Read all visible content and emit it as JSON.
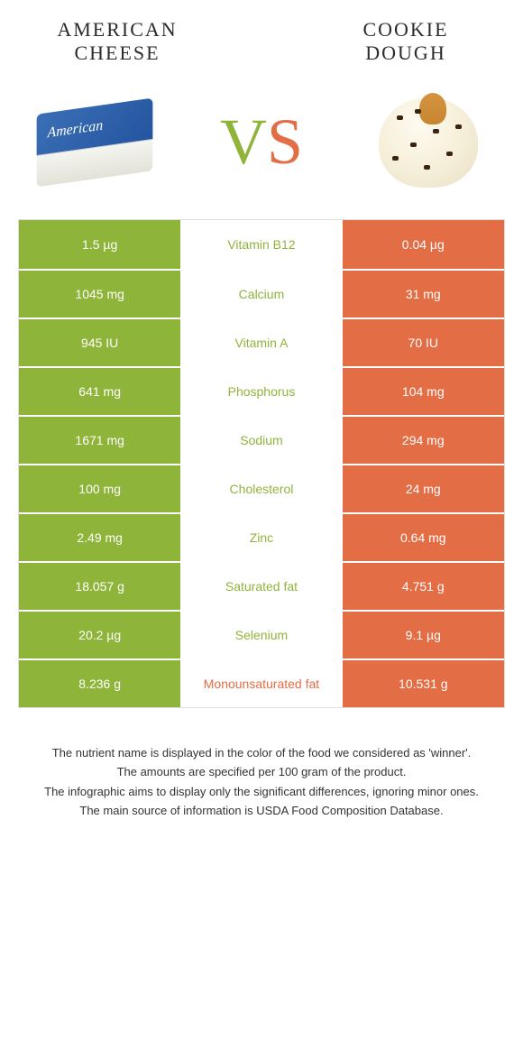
{
  "colors": {
    "left": "#8fb43a",
    "right": "#e36d44",
    "background": "#ffffff"
  },
  "header": {
    "left_title": "American cheese",
    "right_title": "Cookie dough"
  },
  "vs": {
    "v": "V",
    "s": "S"
  },
  "rows": [
    {
      "left": "1.5 µg",
      "label": "Vitamin B12",
      "right": "0.04 µg",
      "winner": "left"
    },
    {
      "left": "1045 mg",
      "label": "Calcium",
      "right": "31 mg",
      "winner": "left"
    },
    {
      "left": "945 IU",
      "label": "Vitamin A",
      "right": "70 IU",
      "winner": "left"
    },
    {
      "left": "641 mg",
      "label": "Phosphorus",
      "right": "104 mg",
      "winner": "left"
    },
    {
      "left": "1671 mg",
      "label": "Sodium",
      "right": "294 mg",
      "winner": "left"
    },
    {
      "left": "100 mg",
      "label": "Cholesterol",
      "right": "24 mg",
      "winner": "left"
    },
    {
      "left": "2.49 mg",
      "label": "Zinc",
      "right": "0.64 mg",
      "winner": "left"
    },
    {
      "left": "18.057 g",
      "label": "Saturated fat",
      "right": "4.751 g",
      "winner": "left"
    },
    {
      "left": "20.2 µg",
      "label": "Selenium",
      "right": "9.1 µg",
      "winner": "left"
    },
    {
      "left": "8.236 g",
      "label": "Monounsaturated fat",
      "right": "10.531 g",
      "winner": "right"
    }
  ],
  "footer": {
    "line1": "The nutrient name is displayed in the color of the food we considered as 'winner'.",
    "line2": "The amounts are specified per 100 gram of the product.",
    "line3": "The infographic aims to display only the significant differences, ignoring minor ones.",
    "line4": "The main source of information is USDA Food Composition Database."
  }
}
